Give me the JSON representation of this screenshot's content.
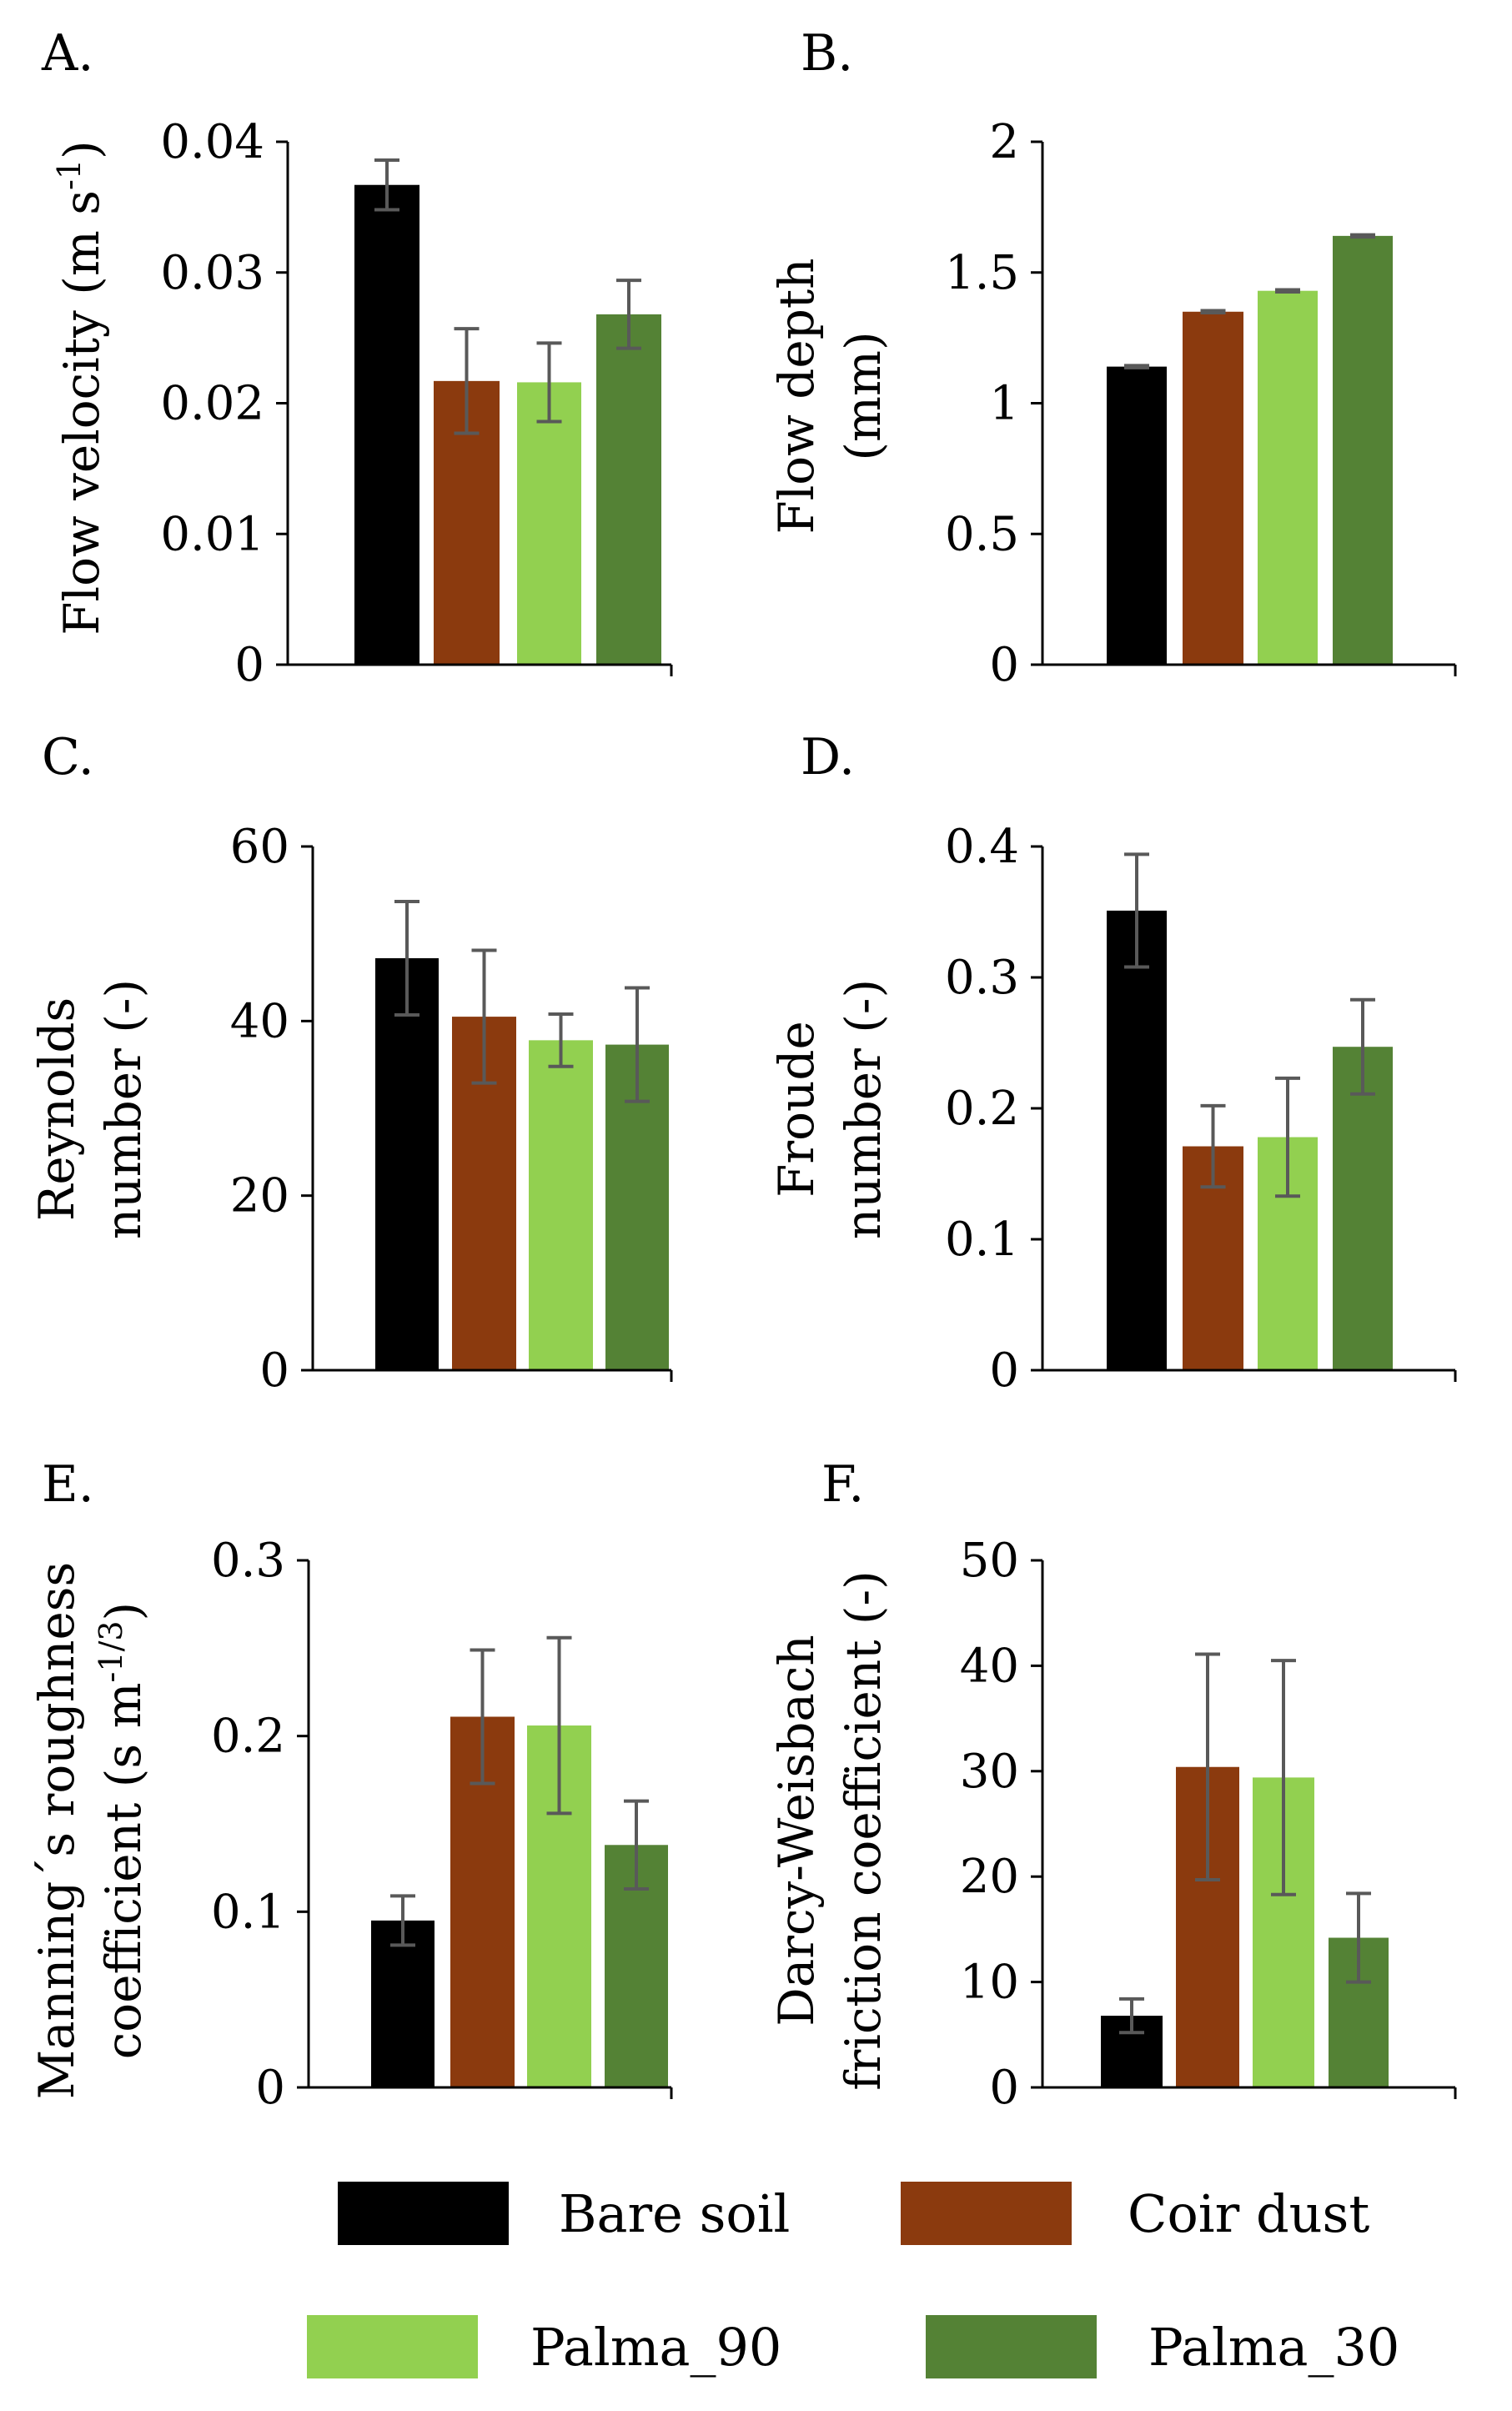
{
  "legend": {
    "entries": [
      {
        "label": "Bare soil",
        "color": "#000000"
      },
      {
        "label": "Coir dust",
        "color": "#8B3A0E"
      },
      {
        "label": "Palma_90",
        "color": "#92D050"
      },
      {
        "label": "Palma_30",
        "color": "#548235"
      }
    ]
  },
  "colors": {
    "error_bar": "#595959",
    "axis": "#000000"
  },
  "chart_data": [
    {
      "type": "bar",
      "panel": "A.",
      "ylabel": "Flow velocity (m s-1)",
      "categories": [
        "Bare soil",
        "Coir dust",
        "Palma_90",
        "Palma_30"
      ],
      "values": [
        0.0367,
        0.0217,
        0.0216,
        0.0268
      ],
      "errors": [
        0.0019,
        0.004,
        0.003,
        0.0026
      ],
      "ylim": [
        0,
        0.04
      ],
      "yticks": [
        "0",
        "0.01",
        "0.02",
        "0.03",
        "0.04"
      ]
    },
    {
      "type": "bar",
      "panel": "B.",
      "ylabel": "Flow depth (mm)",
      "categories": [
        "Bare soil",
        "Coir dust",
        "Palma_90",
        "Palma_30"
      ],
      "values": [
        1.14,
        1.35,
        1.43,
        1.64
      ],
      "errors": [
        0.004,
        0.004,
        0.004,
        0.004
      ],
      "ylim": [
        0,
        2
      ],
      "yticks": [
        "0",
        "0.5",
        "1",
        "1.5",
        "2"
      ]
    },
    {
      "type": "bar",
      "panel": "C.",
      "ylabel": "Reynolds number (-)",
      "categories": [
        "Bare soil",
        "Coir dust",
        "Palma_90",
        "Palma_30"
      ],
      "values": [
        47.2,
        40.5,
        37.8,
        37.3
      ],
      "errors": [
        6.5,
        7.6,
        3.0,
        6.5
      ],
      "ylim": [
        0,
        60
      ],
      "yticks": [
        "0",
        "20",
        "40",
        "60"
      ]
    },
    {
      "type": "bar",
      "panel": "D.",
      "ylabel": "Froude number (-)",
      "categories": [
        "Bare soil",
        "Coir dust",
        "Palma_90",
        "Palma_30"
      ],
      "values": [
        0.351,
        0.171,
        0.178,
        0.247
      ],
      "errors": [
        0.043,
        0.031,
        0.045,
        0.036
      ],
      "ylim": [
        0,
        0.4
      ],
      "yticks": [
        "0",
        "0.1",
        "0.2",
        "0.3",
        "0.4"
      ]
    },
    {
      "type": "bar",
      "panel": "E.",
      "ylabel": "Manning's roughness coefficient (s m-1/3)",
      "categories": [
        "Bare soil",
        "Coir dust",
        "Palma_90",
        "Palma_30"
      ],
      "values": [
        0.095,
        0.211,
        0.206,
        0.138
      ],
      "errors": [
        0.014,
        0.038,
        0.05,
        0.025
      ],
      "ylim": [
        0,
        0.3
      ],
      "yticks": [
        "0",
        "0.1",
        "0.2",
        "0.3"
      ]
    },
    {
      "type": "bar",
      "panel": "F.",
      "ylabel": "Darcy-Weisbach friction coefficient (-)",
      "categories": [
        "Bare soil",
        "Coir dust",
        "Palma_90",
        "Palma_30"
      ],
      "values": [
        6.8,
        30.4,
        29.4,
        14.2
      ],
      "errors": [
        1.6,
        10.7,
        11.1,
        4.2
      ],
      "ylim": [
        0,
        50
      ],
      "yticks": [
        "0",
        "10",
        "20",
        "30",
        "40",
        "50"
      ]
    }
  ]
}
